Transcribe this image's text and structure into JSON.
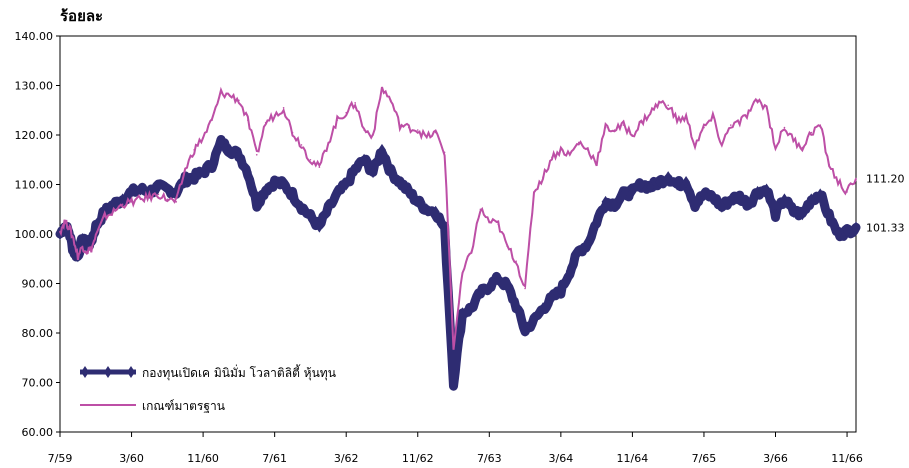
{
  "chart_data": {
    "type": "line",
    "ylabel": "ร้อยละ",
    "ylim": [
      60,
      140
    ],
    "yticks": [
      "60.00",
      "70.00",
      "80.00",
      "90.00",
      "100.00",
      "110.00",
      "120.00",
      "130.00",
      "140.00"
    ],
    "yticks_values": [
      60,
      70,
      80,
      90,
      100,
      110,
      120,
      130,
      140
    ],
    "x_tick_labels": [
      "7/59",
      "3/60",
      "11/60",
      "7/61",
      "3/62",
      "11/62",
      "7/63",
      "3/64",
      "11/64",
      "7/65",
      "3/66",
      "11/66"
    ],
    "x_ticks_values": [
      0,
      8,
      16,
      24,
      32,
      40,
      48,
      56,
      64,
      72,
      80,
      88
    ],
    "xlim": [
      0,
      89
    ],
    "grid": false,
    "legend_position": "bottom-left",
    "series": [
      {
        "name": "กองทุนเปิดเค มินิมั่ม โวลาติลิตี้ หุ้นทุน",
        "color": "#2e2c72",
        "marker": "diamond",
        "end_label": "101.33",
        "points": [
          [
            0,
            100.0
          ],
          [
            0.5,
            101.5
          ],
          [
            1,
            100.5
          ],
          [
            1.5,
            96.5
          ],
          [
            2,
            95.5
          ],
          [
            2.5,
            99.0
          ],
          [
            3,
            97.5
          ],
          [
            3.5,
            98.5
          ],
          [
            4,
            101.5
          ],
          [
            5,
            104.5
          ],
          [
            6,
            106.0
          ],
          [
            7,
            107.0
          ],
          [
            8,
            108.5
          ],
          [
            9,
            109.0
          ],
          [
            10,
            108.5
          ],
          [
            11,
            109.5
          ],
          [
            12,
            109.0
          ],
          [
            13,
            108.5
          ],
          [
            14,
            111.0
          ],
          [
            15,
            111.5
          ],
          [
            16,
            112.5
          ],
          [
            17,
            114.0
          ],
          [
            18,
            118.5
          ],
          [
            19,
            117.0
          ],
          [
            20,
            116.0
          ],
          [
            21,
            112.5
          ],
          [
            22,
            106.0
          ],
          [
            23,
            109.0
          ],
          [
            24,
            110.5
          ],
          [
            25,
            110.0
          ],
          [
            26,
            108.0
          ],
          [
            27,
            105.5
          ],
          [
            28,
            103.5
          ],
          [
            29,
            101.5
          ],
          [
            30,
            105.0
          ],
          [
            31,
            108.0
          ],
          [
            32,
            110.0
          ],
          [
            33,
            113.0
          ],
          [
            34,
            115.0
          ],
          [
            35,
            112.5
          ],
          [
            36,
            117.0
          ],
          [
            37,
            112.5
          ],
          [
            38,
            110.5
          ],
          [
            39,
            108.5
          ],
          [
            40,
            106.5
          ],
          [
            41,
            105.0
          ],
          [
            42,
            104.5
          ],
          [
            43,
            101.0
          ],
          [
            44,
            70.0
          ],
          [
            45,
            84.0
          ],
          [
            46,
            85.0
          ],
          [
            47,
            88.0
          ],
          [
            48,
            89.5
          ],
          [
            49,
            91.0
          ],
          [
            50,
            89.5
          ],
          [
            51,
            85.5
          ],
          [
            52,
            80.5
          ],
          [
            53,
            82.5
          ],
          [
            54,
            85.0
          ],
          [
            55,
            87.0
          ],
          [
            56,
            88.5
          ],
          [
            57,
            92.5
          ],
          [
            58,
            96.5
          ],
          [
            59,
            98.0
          ],
          [
            60,
            102.5
          ],
          [
            61,
            106.5
          ],
          [
            62,
            106.0
          ],
          [
            63,
            108.0
          ],
          [
            64,
            108.5
          ],
          [
            65,
            110.0
          ],
          [
            66,
            109.5
          ],
          [
            67,
            110.5
          ],
          [
            68,
            111.5
          ],
          [
            69,
            110.0
          ],
          [
            70,
            110.5
          ],
          [
            71,
            106.0
          ],
          [
            72,
            108.0
          ],
          [
            73,
            107.5
          ],
          [
            74,
            105.5
          ],
          [
            75,
            107.0
          ],
          [
            76,
            107.5
          ],
          [
            77,
            106.0
          ],
          [
            78,
            108.5
          ],
          [
            79,
            109.0
          ],
          [
            80,
            104.0
          ],
          [
            81,
            107.0
          ],
          [
            82,
            104.5
          ],
          [
            83,
            104.0
          ],
          [
            84,
            107.0
          ],
          [
            85,
            108.0
          ],
          [
            86,
            103.5
          ],
          [
            87,
            100.0
          ],
          [
            88,
            100.5
          ],
          [
            89,
            101.33
          ]
        ]
      },
      {
        "name": "เกณฑ์มาตรฐาน",
        "color": "#bd4fa6",
        "marker": "none",
        "end_label": "111.20",
        "points": [
          [
            0,
            100.5
          ],
          [
            0.5,
            102.5
          ],
          [
            1,
            101.5
          ],
          [
            1.5,
            99.0
          ],
          [
            2,
            95.5
          ],
          [
            2.5,
            97.5
          ],
          [
            3,
            96.5
          ],
          [
            3.5,
            97.0
          ],
          [
            4,
            99.5
          ],
          [
            5,
            103.5
          ],
          [
            6,
            104.5
          ],
          [
            7,
            106.0
          ],
          [
            8,
            106.5
          ],
          [
            9,
            107.0
          ],
          [
            10,
            107.5
          ],
          [
            11,
            108.0
          ],
          [
            12,
            107.0
          ],
          [
            13,
            106.5
          ],
          [
            14,
            113.0
          ],
          [
            15,
            117.0
          ],
          [
            16,
            119.5
          ],
          [
            17,
            123.0
          ],
          [
            18,
            128.5
          ],
          [
            19,
            128.0
          ],
          [
            20,
            127.0
          ],
          [
            21,
            123.0
          ],
          [
            22,
            116.0
          ],
          [
            23,
            122.5
          ],
          [
            24,
            124.0
          ],
          [
            25,
            125.5
          ],
          [
            26,
            120.5
          ],
          [
            27,
            118.0
          ],
          [
            28,
            115.0
          ],
          [
            29,
            113.5
          ],
          [
            30,
            118.5
          ],
          [
            31,
            123.0
          ],
          [
            32,
            124.5
          ],
          [
            33,
            126.5
          ],
          [
            34,
            121.0
          ],
          [
            35,
            120.0
          ],
          [
            36,
            129.5
          ],
          [
            37,
            127.0
          ],
          [
            38,
            122.0
          ],
          [
            39,
            121.5
          ],
          [
            40,
            121.0
          ],
          [
            41,
            119.5
          ],
          [
            42,
            120.5
          ],
          [
            43,
            116.5
          ],
          [
            44,
            77.0
          ],
          [
            45,
            92.0
          ],
          [
            46,
            96.5
          ],
          [
            47,
            105.0
          ],
          [
            48,
            102.5
          ],
          [
            49,
            102.0
          ],
          [
            50,
            97.5
          ],
          [
            51,
            94.5
          ],
          [
            52,
            89.0
          ],
          [
            53,
            108.5
          ],
          [
            54,
            111.5
          ],
          [
            55,
            115.5
          ],
          [
            56,
            117.0
          ],
          [
            57,
            116.0
          ],
          [
            58,
            118.5
          ],
          [
            59,
            117.0
          ],
          [
            60,
            114.5
          ],
          [
            61,
            121.5
          ],
          [
            62,
            121.0
          ],
          [
            63,
            122.0
          ],
          [
            64,
            120.0
          ],
          [
            65,
            122.5
          ],
          [
            66,
            124.5
          ],
          [
            67,
            126.5
          ],
          [
            68,
            126.0
          ],
          [
            69,
            123.0
          ],
          [
            70,
            123.5
          ],
          [
            71,
            118.0
          ],
          [
            72,
            121.5
          ],
          [
            73,
            123.5
          ],
          [
            74,
            118.0
          ],
          [
            75,
            122.0
          ],
          [
            76,
            122.5
          ],
          [
            77,
            124.5
          ],
          [
            78,
            127.0
          ],
          [
            79,
            125.5
          ],
          [
            80,
            117.5
          ],
          [
            81,
            121.5
          ],
          [
            82,
            119.0
          ],
          [
            83,
            117.5
          ],
          [
            84,
            120.5
          ],
          [
            85,
            122.0
          ],
          [
            86,
            114.0
          ],
          [
            87,
            110.5
          ],
          [
            88,
            108.5
          ],
          [
            89,
            111.2
          ]
        ]
      }
    ]
  }
}
